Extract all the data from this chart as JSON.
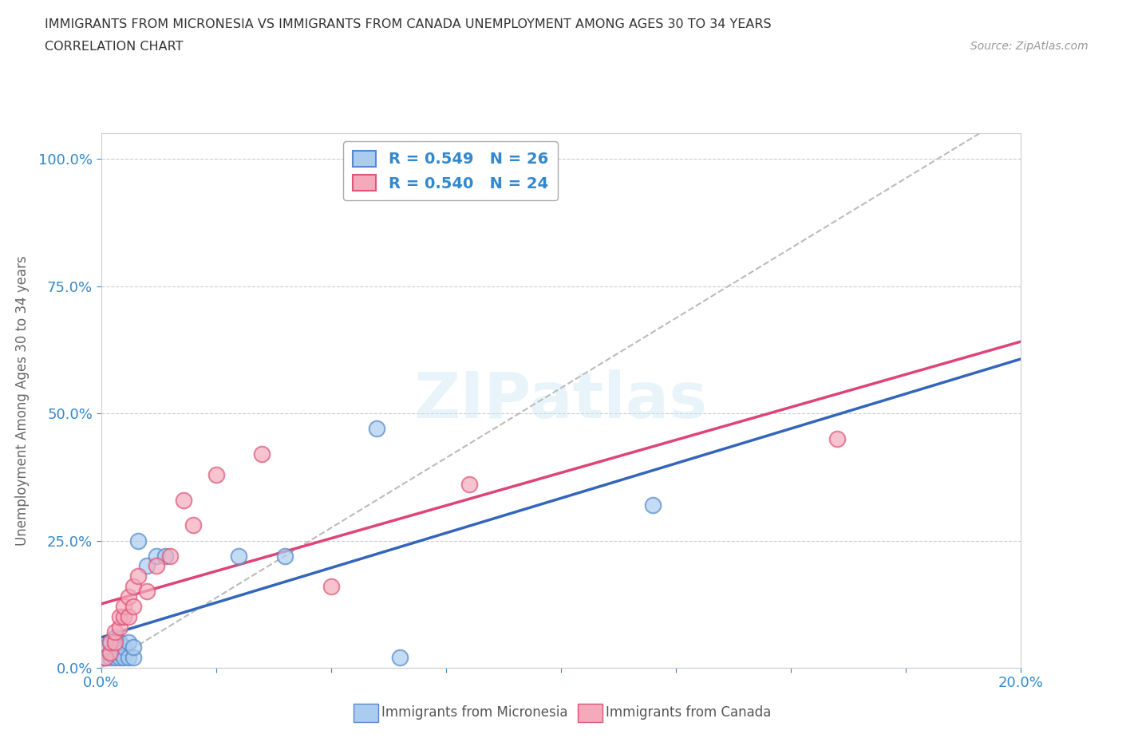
{
  "title_line1": "IMMIGRANTS FROM MICRONESIA VS IMMIGRANTS FROM CANADA UNEMPLOYMENT AMONG AGES 30 TO 34 YEARS",
  "title_line2": "CORRELATION CHART",
  "source": "Source: ZipAtlas.com",
  "ylabel": "Unemployment Among Ages 30 to 34 years",
  "xlim": [
    0.0,
    0.2
  ],
  "ylim": [
    0.0,
    1.05
  ],
  "xticks": [
    0.0,
    0.025,
    0.05,
    0.075,
    0.1,
    0.125,
    0.15,
    0.175,
    0.2
  ],
  "xticklabels_show": [
    "0.0%",
    "20.0%"
  ],
  "yticks": [
    0.0,
    0.25,
    0.5,
    0.75,
    1.0
  ],
  "yticklabels": [
    "0.0%",
    "25.0%",
    "50.0%",
    "75.0%",
    "100.0%"
  ],
  "micronesia_color": "#aaccee",
  "canada_color": "#f5aabb",
  "micronesia_edge": "#5588cc",
  "canada_edge": "#dd5577",
  "blue_line_color": "#3366bb",
  "pink_line_color": "#dd4477",
  "ref_line_color": "#bbbbbb",
  "legend_text_color": "#3388cc",
  "R_micronesia": 0.549,
  "N_micronesia": 26,
  "R_canada": 0.54,
  "N_canada": 24,
  "micronesia_x": [
    0.001,
    0.001,
    0.002,
    0.002,
    0.002,
    0.003,
    0.003,
    0.003,
    0.004,
    0.004,
    0.004,
    0.005,
    0.005,
    0.006,
    0.006,
    0.007,
    0.007,
    0.008,
    0.01,
    0.012,
    0.014,
    0.03,
    0.04,
    0.06,
    0.065,
    0.12
  ],
  "micronesia_y": [
    0.02,
    0.04,
    0.02,
    0.03,
    0.05,
    0.02,
    0.04,
    0.06,
    0.02,
    0.03,
    0.05,
    0.02,
    0.04,
    0.02,
    0.05,
    0.02,
    0.04,
    0.25,
    0.2,
    0.22,
    0.22,
    0.22,
    0.22,
    0.47,
    0.02,
    0.32
  ],
  "canada_x": [
    0.001,
    0.002,
    0.002,
    0.003,
    0.003,
    0.004,
    0.004,
    0.005,
    0.005,
    0.006,
    0.006,
    0.007,
    0.007,
    0.008,
    0.01,
    0.012,
    0.015,
    0.018,
    0.02,
    0.025,
    0.035,
    0.05,
    0.08,
    0.16
  ],
  "canada_y": [
    0.02,
    0.03,
    0.05,
    0.05,
    0.07,
    0.08,
    0.1,
    0.1,
    0.12,
    0.1,
    0.14,
    0.12,
    0.16,
    0.18,
    0.15,
    0.2,
    0.22,
    0.33,
    0.28,
    0.38,
    0.42,
    0.16,
    0.36,
    0.45
  ],
  "watermark": "ZIPatlas",
  "background_color": "#ffffff",
  "grid_color": "#cccccc"
}
